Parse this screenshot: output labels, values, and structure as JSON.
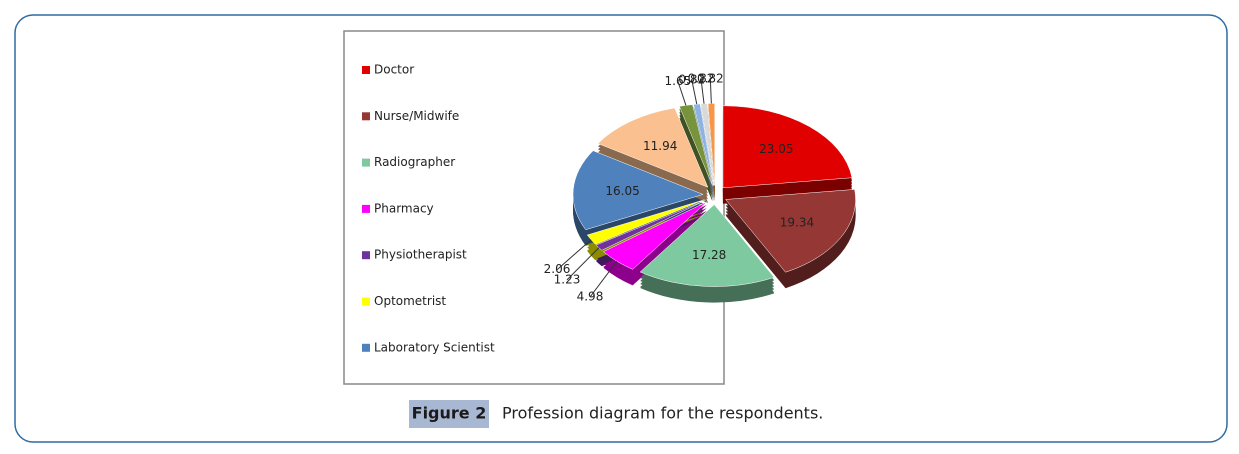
{
  "chart_data": {
    "type": "pie",
    "categories": [
      "Doctor",
      "Nurse/Midwife",
      "Radiographer",
      "Pharmacy",
      "Physiotherapist",
      "Optometrist",
      "Laboratory Scientist",
      null,
      null,
      null,
      null,
      null
    ],
    "values": [
      23.05,
      19.34,
      17.28,
      4.98,
      1.23,
      2.06,
      16.05,
      11.94,
      1.65,
      0.82,
      0.82,
      0.82
    ],
    "colors": [
      "#e00000",
      "#953735",
      "#7fc9a0",
      "#ff00ff",
      "#7030a0",
      "#ffff00",
      "#4f81bd",
      "#fac090",
      "#77933c",
      "#8db3e2",
      "#d9d9d9",
      "#f79646"
    ],
    "legend": "left"
  },
  "caption": {
    "label": "Figure 2",
    "text": "Profession diagram for the respondents."
  }
}
